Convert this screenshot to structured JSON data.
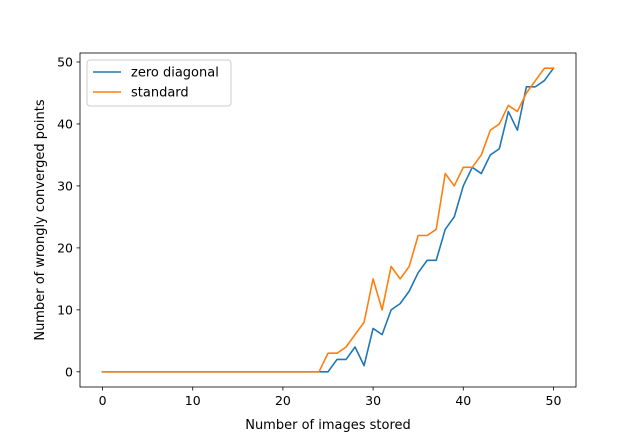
{
  "chart_data": {
    "type": "line",
    "title": "",
    "xlabel": "Number of images stored",
    "ylabel": "Number of wrongly converged points",
    "xlim": [
      -2.5,
      52.5
    ],
    "ylim": [
      -2.45,
      51.45
    ],
    "xticks": [
      0,
      10,
      20,
      30,
      40,
      50
    ],
    "yticks": [
      0,
      10,
      20,
      30,
      40,
      50
    ],
    "grid": false,
    "legend_position": "top-left",
    "x": [
      0,
      1,
      2,
      3,
      4,
      5,
      6,
      7,
      8,
      9,
      10,
      11,
      12,
      13,
      14,
      15,
      16,
      17,
      18,
      19,
      20,
      21,
      22,
      23,
      24,
      25,
      26,
      27,
      28,
      29,
      30,
      31,
      32,
      33,
      34,
      35,
      36,
      37,
      38,
      39,
      40,
      41,
      42,
      43,
      44,
      45,
      46,
      47,
      48,
      49,
      50
    ],
    "series": [
      {
        "name": "zero diagonal",
        "color": "#1f77b4",
        "values": [
          0,
          0,
          0,
          0,
          0,
          0,
          0,
          0,
          0,
          0,
          0,
          0,
          0,
          0,
          0,
          0,
          0,
          0,
          0,
          0,
          0,
          0,
          0,
          0,
          0,
          0,
          2,
          2,
          4,
          1,
          7,
          6,
          10,
          11,
          13,
          16,
          18,
          18,
          23,
          25,
          30,
          33,
          32,
          35,
          36,
          42,
          39,
          46,
          46,
          47,
          49
        ]
      },
      {
        "name": "standard",
        "color": "#ff7f0e",
        "values": [
          0,
          0,
          0,
          0,
          0,
          0,
          0,
          0,
          0,
          0,
          0,
          0,
          0,
          0,
          0,
          0,
          0,
          0,
          0,
          0,
          0,
          0,
          0,
          0,
          0,
          3,
          3,
          4,
          6,
          8,
          15,
          10,
          17,
          15,
          17,
          22,
          22,
          23,
          32,
          30,
          33,
          33,
          35,
          39,
          40,
          43,
          42,
          45,
          47,
          49,
          49
        ]
      }
    ]
  }
}
